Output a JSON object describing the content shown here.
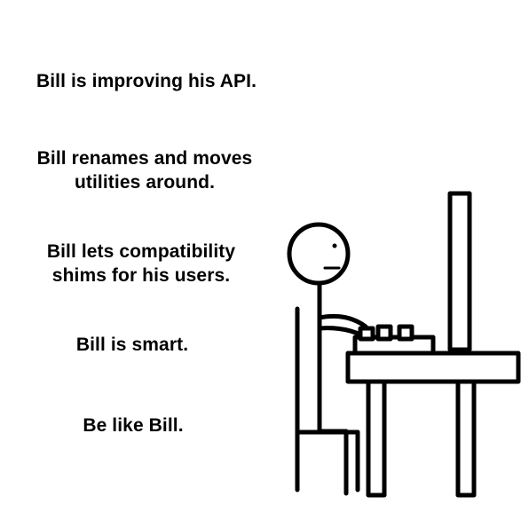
{
  "captions": {
    "line1": "Bill is improving his API.",
    "line2": "Bill renames and moves\nutilities around.",
    "line3": "Bill lets compatibility\nshims for his users.",
    "line4": "Bill is smart.",
    "line5": "Be like Bill."
  },
  "illustration": {
    "subject": "stick-figure-at-computer",
    "stroke_color": "#000000",
    "fill_color": "#ffffff"
  }
}
